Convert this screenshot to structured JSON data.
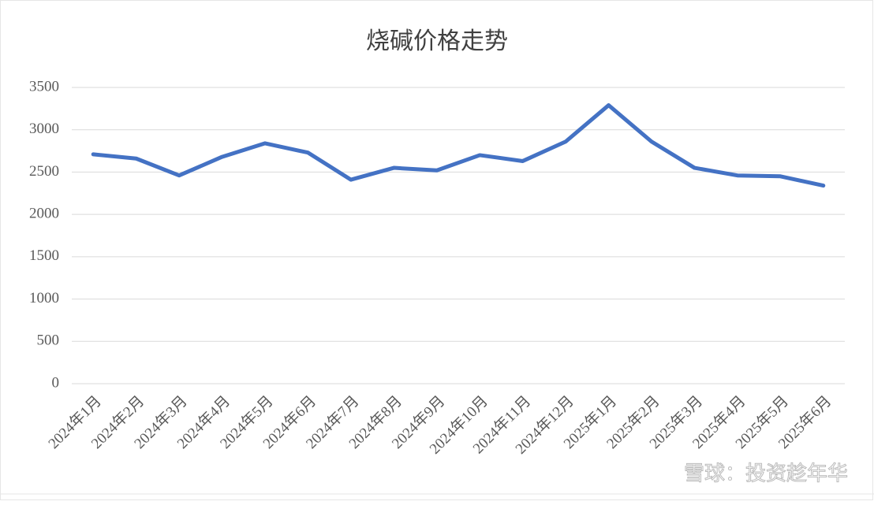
{
  "chart_data": {
    "type": "line",
    "title": "烧碱价格走势",
    "categories": [
      "2024年1月",
      "2024年2月",
      "2024年3月",
      "2024年4月",
      "2024年5月",
      "2024年6月",
      "2024年7月",
      "2024年8月",
      "2024年9月",
      "2024年10月",
      "2024年11月",
      "2024年12月",
      "2025年1月",
      "2025年2月",
      "2025年3月",
      "2025年4月",
      "2025年5月",
      "2025年6月"
    ],
    "series": [
      {
        "name": "烧碱价格",
        "color": "#4472c4",
        "values": [
          2710,
          2660,
          2460,
          2680,
          2840,
          2730,
          2410,
          2550,
          2520,
          2700,
          2630,
          2860,
          3290,
          2860,
          2550,
          2460,
          2450,
          2340
        ]
      }
    ],
    "ylim": [
      0,
      3500
    ],
    "yticks": [
      0,
      500,
      1000,
      1500,
      2000,
      2500,
      3000,
      3500
    ],
    "grid": true,
    "watermark": "雪球：投资趁年华"
  }
}
